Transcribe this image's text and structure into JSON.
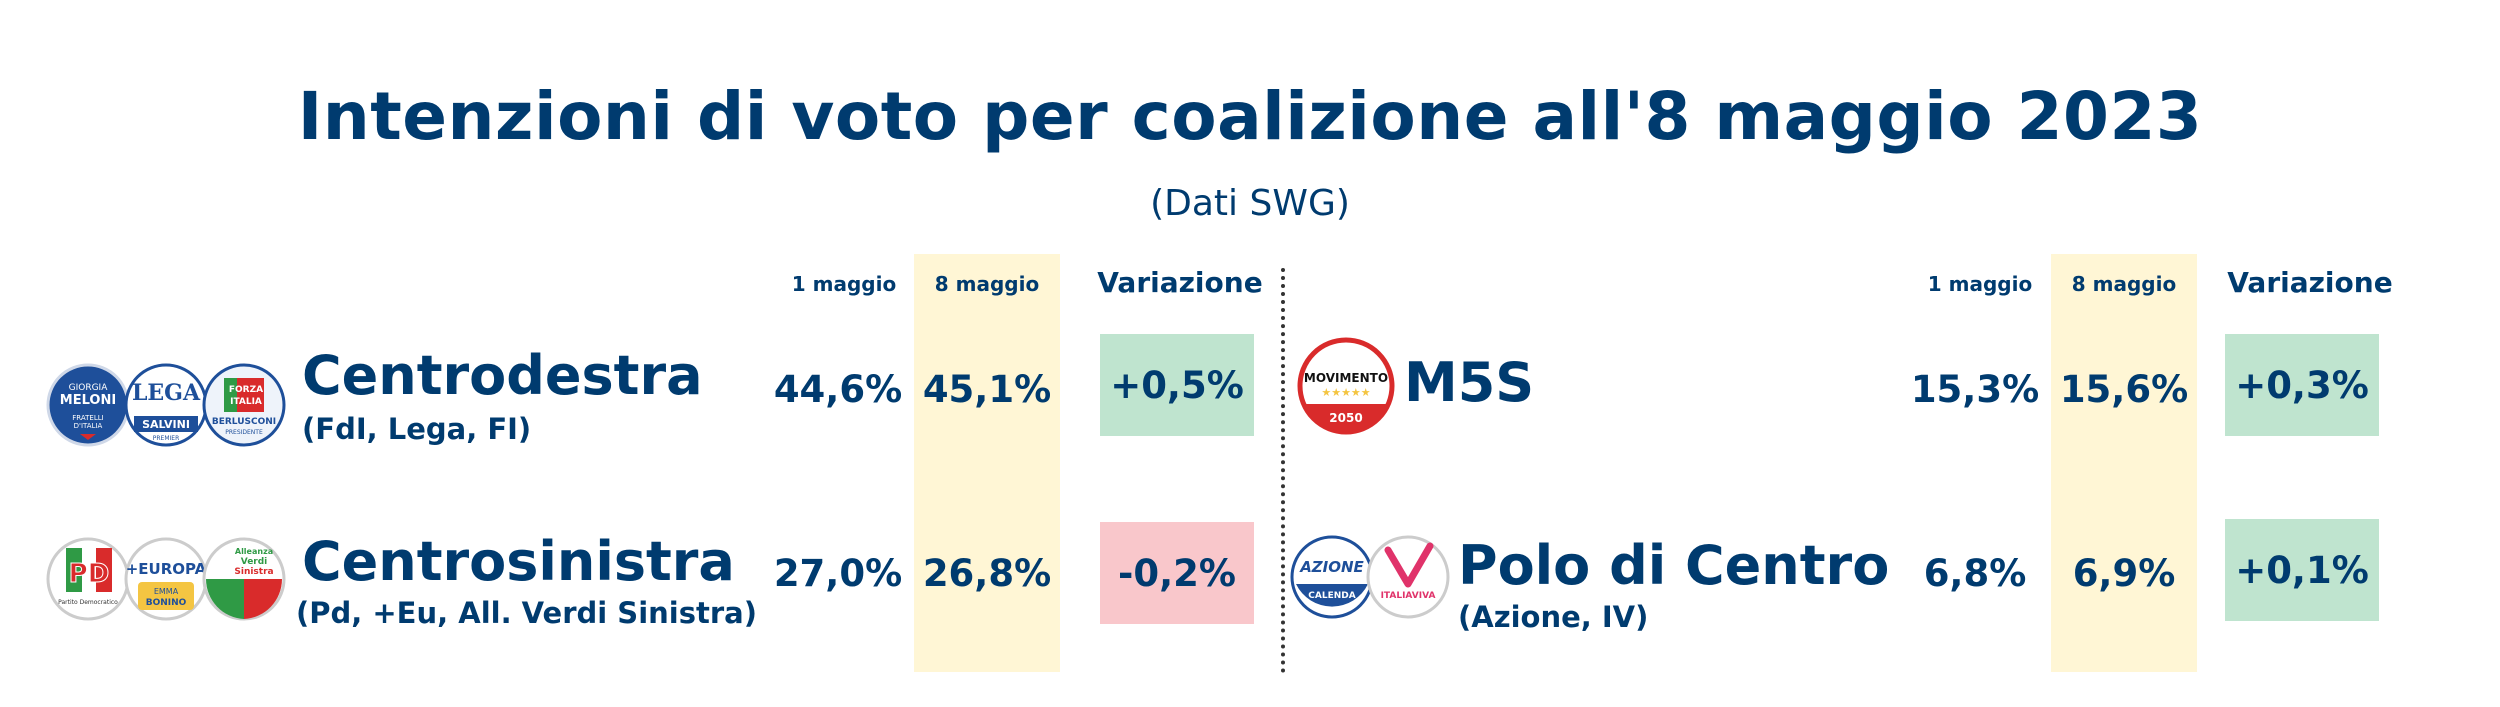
{
  "title": "Intenzioni di voto per coalizione all'8 maggio 2023",
  "subtitle": "(Dati SWG)",
  "chart_data": {
    "type": "table",
    "columns": [
      "1 maggio",
      "8 maggio",
      "Variazione"
    ],
    "rows": [
      {
        "name": "Centrodestra",
        "detail": "(FdI, Lega, FI)",
        "values": [
          "44,6%",
          "45,1%"
        ],
        "change": "+0,5%",
        "trend": "up"
      },
      {
        "name": "Centrosinistra",
        "detail": "(Pd, +Eu, All. Verdi Sinistra)",
        "values": [
          "27,0%",
          "26,8%"
        ],
        "change": "-0,2%",
        "trend": "down"
      },
      {
        "name": "M5S",
        "detail": "",
        "values": [
          "15,3%",
          "15,6%"
        ],
        "change": "+0,3%",
        "trend": "up"
      },
      {
        "name": "Polo di Centro",
        "detail": "(Azione, IV)",
        "values": [
          "6,8%",
          "6,9%"
        ],
        "change": "+0,1%",
        "trend": "up"
      }
    ]
  },
  "colors": {
    "text": "#003b6f",
    "highlight_column": "#fff6d5",
    "positive": "#bfe4cf",
    "negative": "#f9c7cb"
  },
  "logos": {
    "centrodestra": [
      "meloni-fdi-logo",
      "lega-salvini-logo",
      "forza-italia-logo"
    ],
    "centrosinistra": [
      "pd-logo",
      "piu-europa-logo",
      "verdi-sinistra-logo"
    ],
    "m5s": [
      "movimento-5-stelle-logo"
    ],
    "polo": [
      "azione-logo",
      "italia-viva-logo"
    ],
    "logo_text": {
      "meloni": [
        "GIORGIA",
        "MELONI",
        "FRATELLI",
        "D'ITALIA"
      ],
      "lega": [
        "LEGA",
        "SALVINI",
        "PREMIER"
      ],
      "fi": [
        "FORZA",
        "ITALIA",
        "BERLUSCONI",
        "PRESIDENTE"
      ],
      "pd": [
        "PD",
        "Partito Democratico"
      ],
      "europa": [
        "+EUROPA",
        "EMMA",
        "BONINO"
      ],
      "avs": [
        "Alleanza",
        "Verdi",
        "Sinistra"
      ],
      "m5s": [
        "MOVIMENTO",
        "2050"
      ],
      "azione": [
        "AZIONE",
        "CALENDA"
      ],
      "iv": [
        "ITALIAVIVA"
      ]
    }
  }
}
